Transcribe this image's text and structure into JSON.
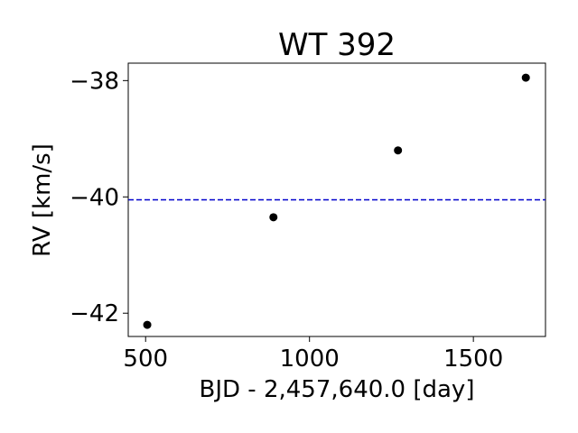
{
  "chart_data": {
    "type": "scatter",
    "title": "WT 392",
    "xlabel": "BJD - 2,457,640.0 [day]",
    "ylabel": "RV [km/s]",
    "xlim": [
      447,
      1720
    ],
    "ylim": [
      -42.4,
      -37.7
    ],
    "xticks": [
      500,
      1000,
      1500
    ],
    "xtick_labels": [
      "500",
      "1000",
      "1500"
    ],
    "yticks": [
      -42,
      -40,
      -38
    ],
    "ytick_labels": [
      "−42",
      "−40",
      "−38"
    ],
    "points": [
      {
        "x": 505,
        "y": -42.2
      },
      {
        "x": 890,
        "y": -40.35
      },
      {
        "x": 1270,
        "y": -39.2
      },
      {
        "x": 1660,
        "y": -37.95
      }
    ],
    "reference_line": {
      "y": -40.05,
      "style": "dashed",
      "color": "#0000cc"
    },
    "marker_color": "#000000",
    "grid": false
  }
}
